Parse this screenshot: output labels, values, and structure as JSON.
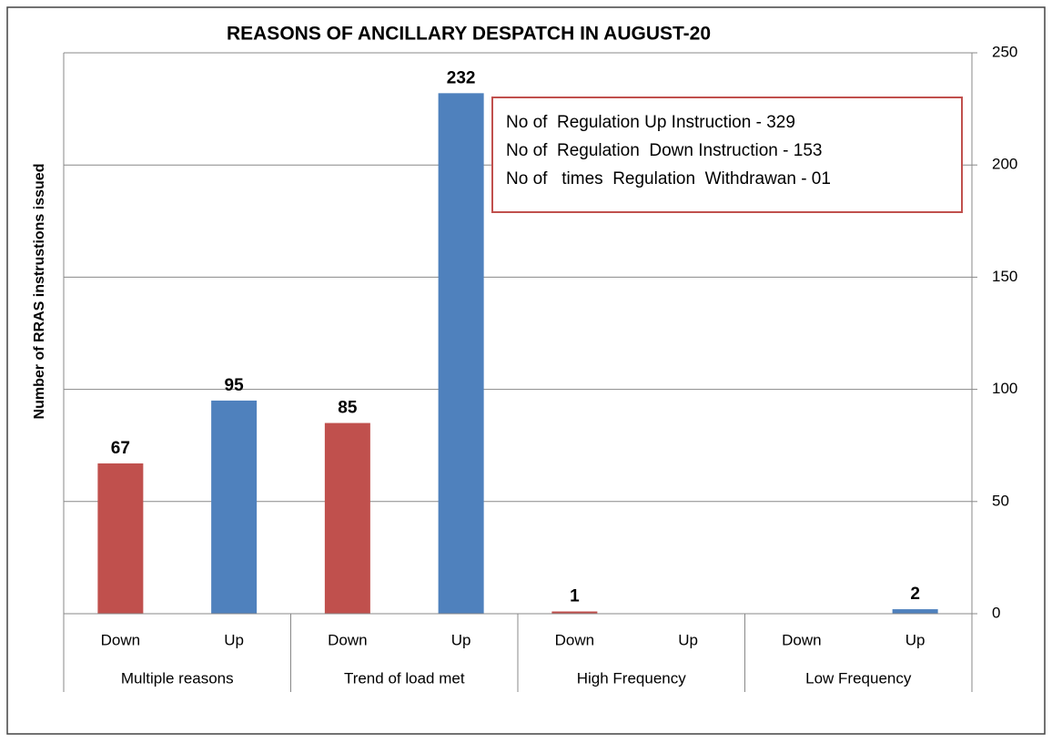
{
  "chart_data": {
    "type": "bar",
    "title": "REASONS OF ANCILLARY DESPATCH IN  AUGUST-20",
    "y_label": "Number of RRAS instrustions issued",
    "categories": [
      "Down",
      "Up",
      "Down",
      "Up",
      "Down",
      "Up",
      "Down",
      "Up"
    ],
    "groups": [
      "Multiple reasons",
      "Trend of load met",
      "High Frequency",
      "Low Frequency"
    ],
    "values": [
      67,
      95,
      85,
      232,
      1,
      null,
      null,
      2
    ],
    "colors": [
      "#c0504d",
      "#4f81bd",
      "#c0504d",
      "#4f81bd",
      "#c0504d",
      "#4f81bd",
      "#c0504d",
      "#4f81bd"
    ],
    "ylim": [
      0,
      250
    ],
    "yticks": [
      0,
      50,
      100,
      150,
      200,
      250
    ],
    "grid": true,
    "annotations": [
      "No of  Regulation Up Instruction - 329",
      "No of  Regulation  Down Instruction - 153",
      "No of   times  Regulation  Withdrawan - 01"
    ]
  }
}
